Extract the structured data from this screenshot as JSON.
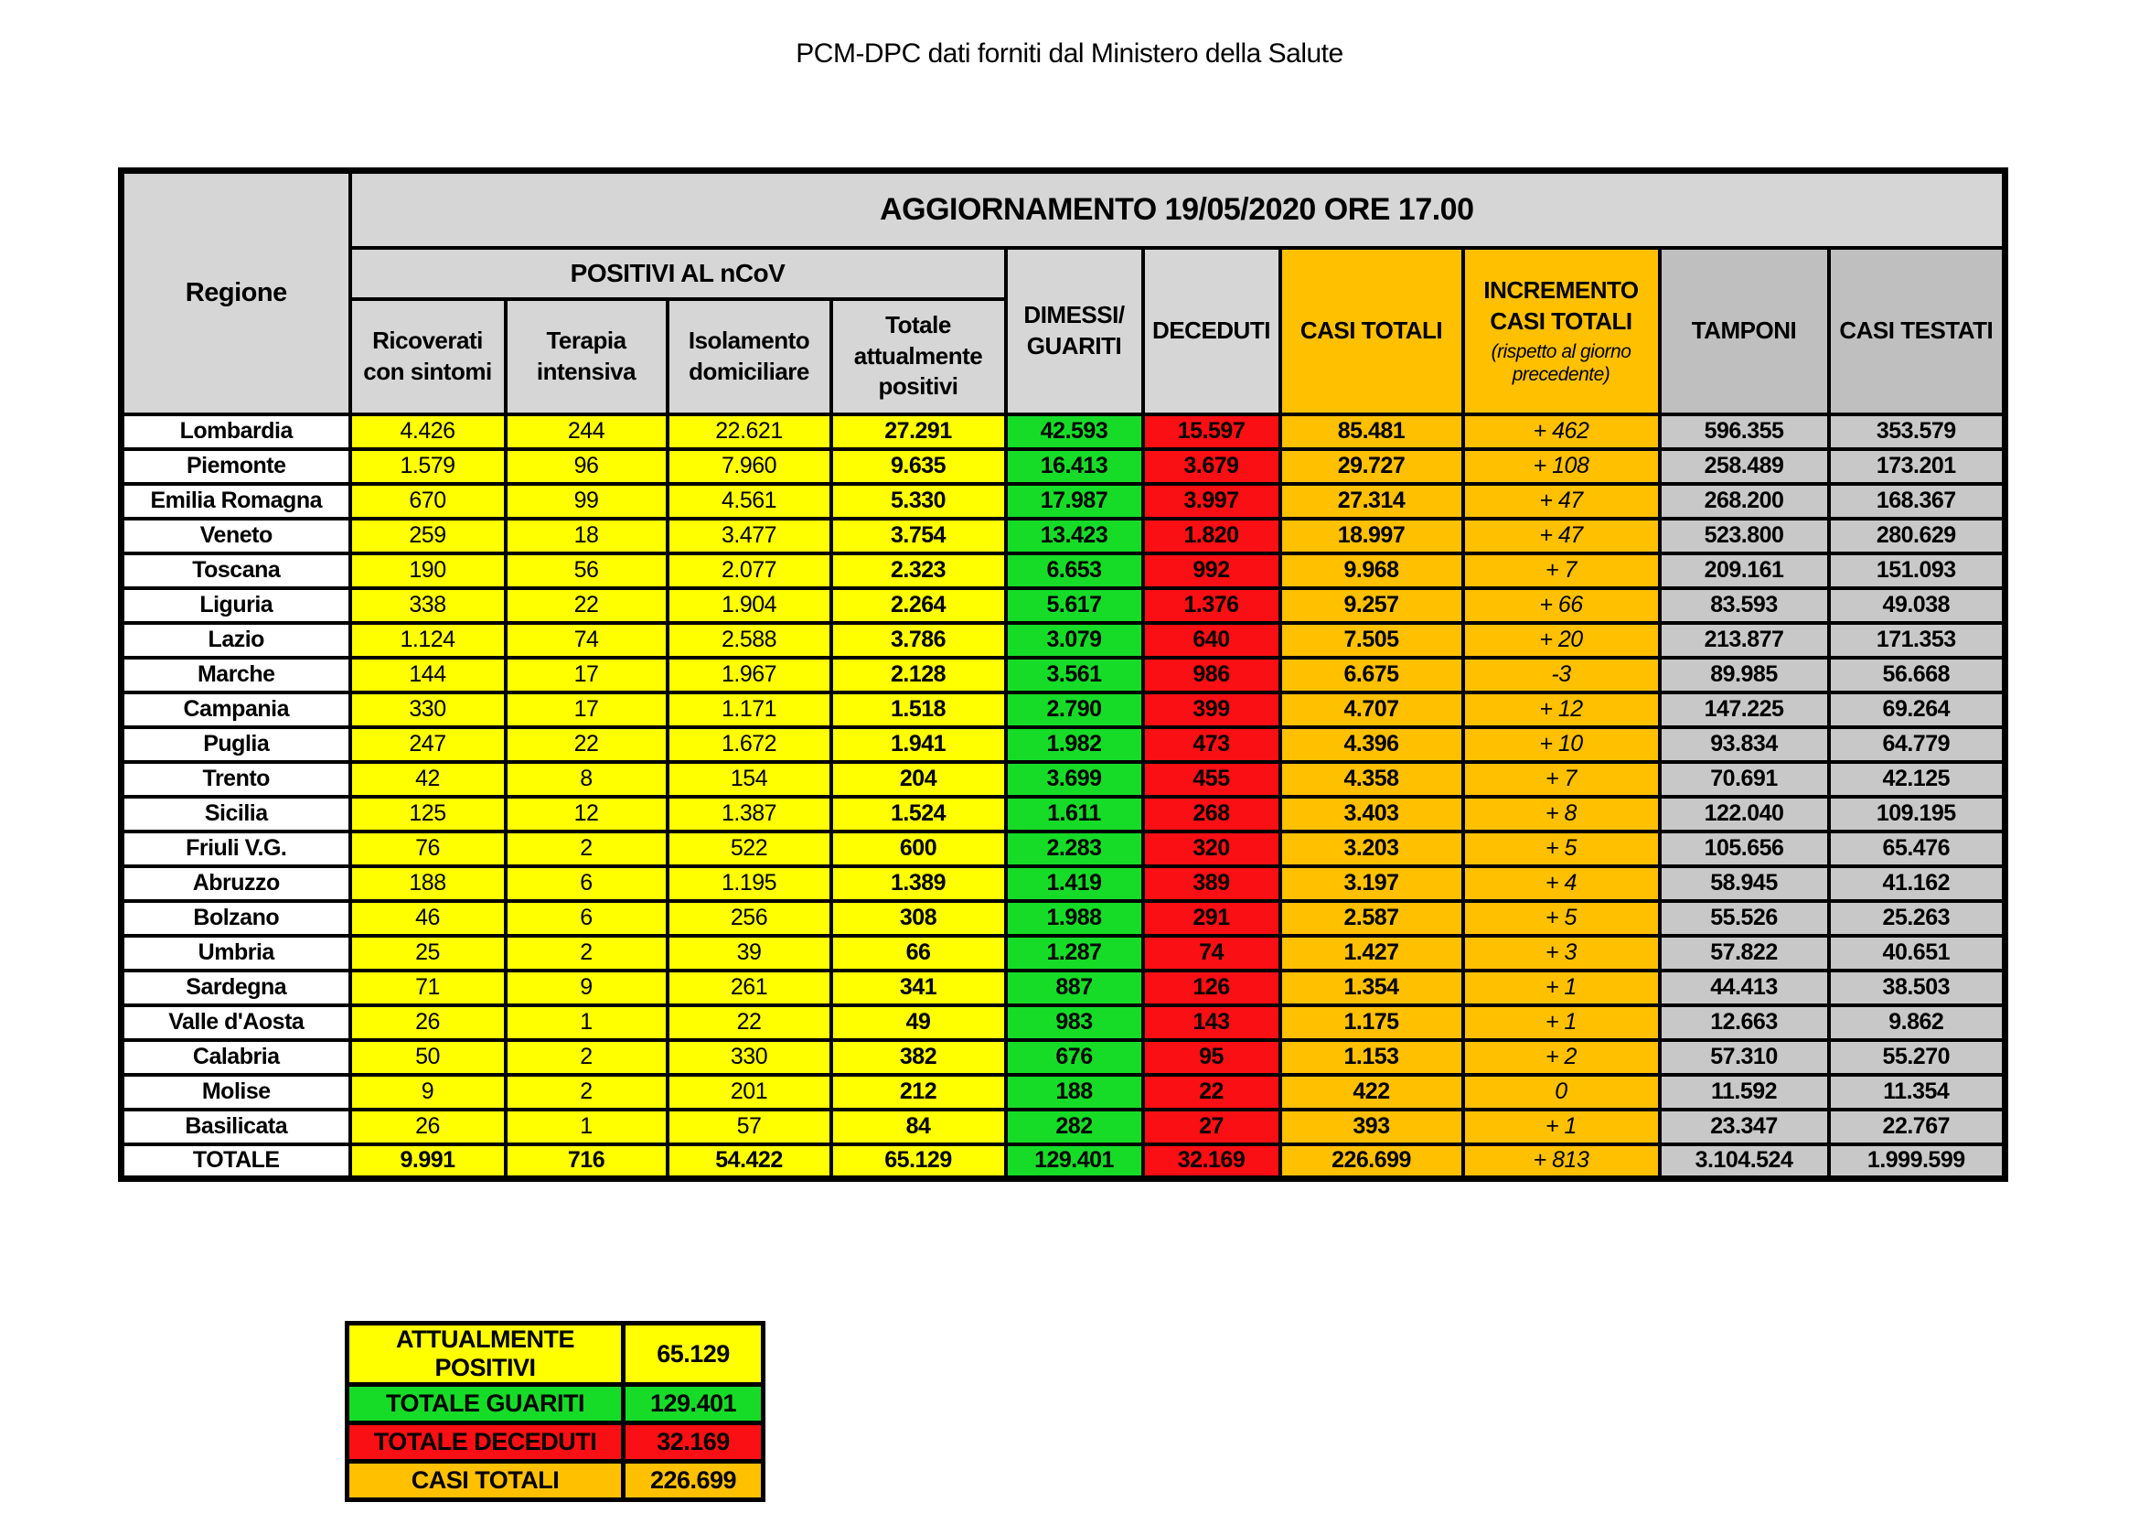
{
  "title": "PCM-DPC dati forniti dal Ministero della Salute",
  "colors": {
    "yellow": "#ffff00",
    "green": "#16dc28",
    "red": "#fa0f14",
    "orange": "#ffc000",
    "cell_gray": "#c8c8c8",
    "head_gray": "#d6d6d6",
    "head_dark_gray": "#bfbfbf"
  },
  "table": {
    "banner": "AGGIORNAMENTO 19/05/2020 ORE 17.00",
    "headers": {
      "regione": "Regione",
      "positivi_group": "POSITIVI AL nCoV",
      "ricoverati": "Ricoverati con sintomi",
      "terapia": "Terapia intensiva",
      "isolamento": "Isolamento domiciliare",
      "totale_positivi": "Totale attualmente positivi",
      "dimessi": "DIMESSI/ GUARITI",
      "deceduti": "DECEDUTI",
      "casi_totali": "CASI TOTALI",
      "incremento": "INCREMENTO CASI  TOTALI",
      "incremento_sub": "(rispetto al giorno precedente)",
      "tamponi": "TAMPONI",
      "casi_testati": "CASI TESTATI"
    },
    "rows": [
      {
        "regione": "Lombardia",
        "ricoverati": "4.426",
        "terapia": "244",
        "isolamento": "22.621",
        "totale_positivi": "27.291",
        "dimessi": "42.593",
        "deceduti": "15.597",
        "casi_totali": "85.481",
        "incremento": "+ 462",
        "tamponi": "596.355",
        "casi_testati": "353.579"
      },
      {
        "regione": "Piemonte",
        "ricoverati": "1.579",
        "terapia": "96",
        "isolamento": "7.960",
        "totale_positivi": "9.635",
        "dimessi": "16.413",
        "deceduti": "3.679",
        "casi_totali": "29.727",
        "incremento": "+ 108",
        "tamponi": "258.489",
        "casi_testati": "173.201"
      },
      {
        "regione": "Emilia Romagna",
        "ricoverati": "670",
        "terapia": "99",
        "isolamento": "4.561",
        "totale_positivi": "5.330",
        "dimessi": "17.987",
        "deceduti": "3.997",
        "casi_totali": "27.314",
        "incremento": "+ 47",
        "tamponi": "268.200",
        "casi_testati": "168.367"
      },
      {
        "regione": "Veneto",
        "ricoverati": "259",
        "terapia": "18",
        "isolamento": "3.477",
        "totale_positivi": "3.754",
        "dimessi": "13.423",
        "deceduti": "1.820",
        "casi_totali": "18.997",
        "incremento": "+ 47",
        "tamponi": "523.800",
        "casi_testati": "280.629"
      },
      {
        "regione": "Toscana",
        "ricoverati": "190",
        "terapia": "56",
        "isolamento": "2.077",
        "totale_positivi": "2.323",
        "dimessi": "6.653",
        "deceduti": "992",
        "casi_totali": "9.968",
        "incremento": "+ 7",
        "tamponi": "209.161",
        "casi_testati": "151.093"
      },
      {
        "regione": "Liguria",
        "ricoverati": "338",
        "terapia": "22",
        "isolamento": "1.904",
        "totale_positivi": "2.264",
        "dimessi": "5.617",
        "deceduti": "1.376",
        "casi_totali": "9.257",
        "incremento": "+ 66",
        "tamponi": "83.593",
        "casi_testati": "49.038"
      },
      {
        "regione": "Lazio",
        "ricoverati": "1.124",
        "terapia": "74",
        "isolamento": "2.588",
        "totale_positivi": "3.786",
        "dimessi": "3.079",
        "deceduti": "640",
        "casi_totali": "7.505",
        "incremento": "+ 20",
        "tamponi": "213.877",
        "casi_testati": "171.353"
      },
      {
        "regione": "Marche",
        "ricoverati": "144",
        "terapia": "17",
        "isolamento": "1.967",
        "totale_positivi": "2.128",
        "dimessi": "3.561",
        "deceduti": "986",
        "casi_totali": "6.675",
        "incremento": "-3",
        "tamponi": "89.985",
        "casi_testati": "56.668"
      },
      {
        "regione": "Campania",
        "ricoverati": "330",
        "terapia": "17",
        "isolamento": "1.171",
        "totale_positivi": "1.518",
        "dimessi": "2.790",
        "deceduti": "399",
        "casi_totali": "4.707",
        "incremento": "+ 12",
        "tamponi": "147.225",
        "casi_testati": "69.264"
      },
      {
        "regione": "Puglia",
        "ricoverati": "247",
        "terapia": "22",
        "isolamento": "1.672",
        "totale_positivi": "1.941",
        "dimessi": "1.982",
        "deceduti": "473",
        "casi_totali": "4.396",
        "incremento": "+ 10",
        "tamponi": "93.834",
        "casi_testati": "64.779"
      },
      {
        "regione": "Trento",
        "ricoverati": "42",
        "terapia": "8",
        "isolamento": "154",
        "totale_positivi": "204",
        "dimessi": "3.699",
        "deceduti": "455",
        "casi_totali": "4.358",
        "incremento": "+ 7",
        "tamponi": "70.691",
        "casi_testati": "42.125"
      },
      {
        "regione": "Sicilia",
        "ricoverati": "125",
        "terapia": "12",
        "isolamento": "1.387",
        "totale_positivi": "1.524",
        "dimessi": "1.611",
        "deceduti": "268",
        "casi_totali": "3.403",
        "incremento": "+ 8",
        "tamponi": "122.040",
        "casi_testati": "109.195"
      },
      {
        "regione": "Friuli V.G.",
        "ricoverati": "76",
        "terapia": "2",
        "isolamento": "522",
        "totale_positivi": "600",
        "dimessi": "2.283",
        "deceduti": "320",
        "casi_totali": "3.203",
        "incremento": "+ 5",
        "tamponi": "105.656",
        "casi_testati": "65.476"
      },
      {
        "regione": "Abruzzo",
        "ricoverati": "188",
        "terapia": "6",
        "isolamento": "1.195",
        "totale_positivi": "1.389",
        "dimessi": "1.419",
        "deceduti": "389",
        "casi_totali": "3.197",
        "incremento": "+ 4",
        "tamponi": "58.945",
        "casi_testati": "41.162"
      },
      {
        "regione": "Bolzano",
        "ricoverati": "46",
        "terapia": "6",
        "isolamento": "256",
        "totale_positivi": "308",
        "dimessi": "1.988",
        "deceduti": "291",
        "casi_totali": "2.587",
        "incremento": "+ 5",
        "tamponi": "55.526",
        "casi_testati": "25.263"
      },
      {
        "regione": "Umbria",
        "ricoverati": "25",
        "terapia": "2",
        "isolamento": "39",
        "totale_positivi": "66",
        "dimessi": "1.287",
        "deceduti": "74",
        "casi_totali": "1.427",
        "incremento": "+ 3",
        "tamponi": "57.822",
        "casi_testati": "40.651"
      },
      {
        "regione": "Sardegna",
        "ricoverati": "71",
        "terapia": "9",
        "isolamento": "261",
        "totale_positivi": "341",
        "dimessi": "887",
        "deceduti": "126",
        "casi_totali": "1.354",
        "incremento": "+ 1",
        "tamponi": "44.413",
        "casi_testati": "38.503"
      },
      {
        "regione": "Valle d'Aosta",
        "ricoverati": "26",
        "terapia": "1",
        "isolamento": "22",
        "totale_positivi": "49",
        "dimessi": "983",
        "deceduti": "143",
        "casi_totali": "1.175",
        "incremento": "+ 1",
        "tamponi": "12.663",
        "casi_testati": "9.862"
      },
      {
        "regione": "Calabria",
        "ricoverati": "50",
        "terapia": "2",
        "isolamento": "330",
        "totale_positivi": "382",
        "dimessi": "676",
        "deceduti": "95",
        "casi_totali": "1.153",
        "incremento": "+ 2",
        "tamponi": "57.310",
        "casi_testati": "55.270"
      },
      {
        "regione": "Molise",
        "ricoverati": "9",
        "terapia": "2",
        "isolamento": "201",
        "totale_positivi": "212",
        "dimessi": "188",
        "deceduti": "22",
        "casi_totali": "422",
        "incremento": "0",
        "tamponi": "11.592",
        "casi_testati": "11.354"
      },
      {
        "regione": "Basilicata",
        "ricoverati": "26",
        "terapia": "1",
        "isolamento": "57",
        "totale_positivi": "84",
        "dimessi": "282",
        "deceduti": "27",
        "casi_totali": "393",
        "incremento": "+ 1",
        "tamponi": "23.347",
        "casi_testati": "22.767"
      }
    ],
    "totals": {
      "regione": "TOTALE",
      "ricoverati": "9.991",
      "terapia": "716",
      "isolamento": "54.422",
      "totale_positivi": "65.129",
      "dimessi": "129.401",
      "deceduti": "32.169",
      "casi_totali": "226.699",
      "incremento": "+ 813",
      "tamponi": "3.104.524",
      "casi_testati": "1.999.599"
    }
  },
  "summary": {
    "rows": [
      {
        "label": "ATTUALMENTE POSITIVI",
        "value": "65.129",
        "color": "yellow"
      },
      {
        "label": "TOTALE GUARITI",
        "value": "129.401",
        "color": "green"
      },
      {
        "label": "TOTALE DECEDUTI",
        "value": "32.169",
        "color": "red"
      },
      {
        "label": "CASI TOTALI",
        "value": "226.699",
        "color": "orange"
      }
    ]
  }
}
